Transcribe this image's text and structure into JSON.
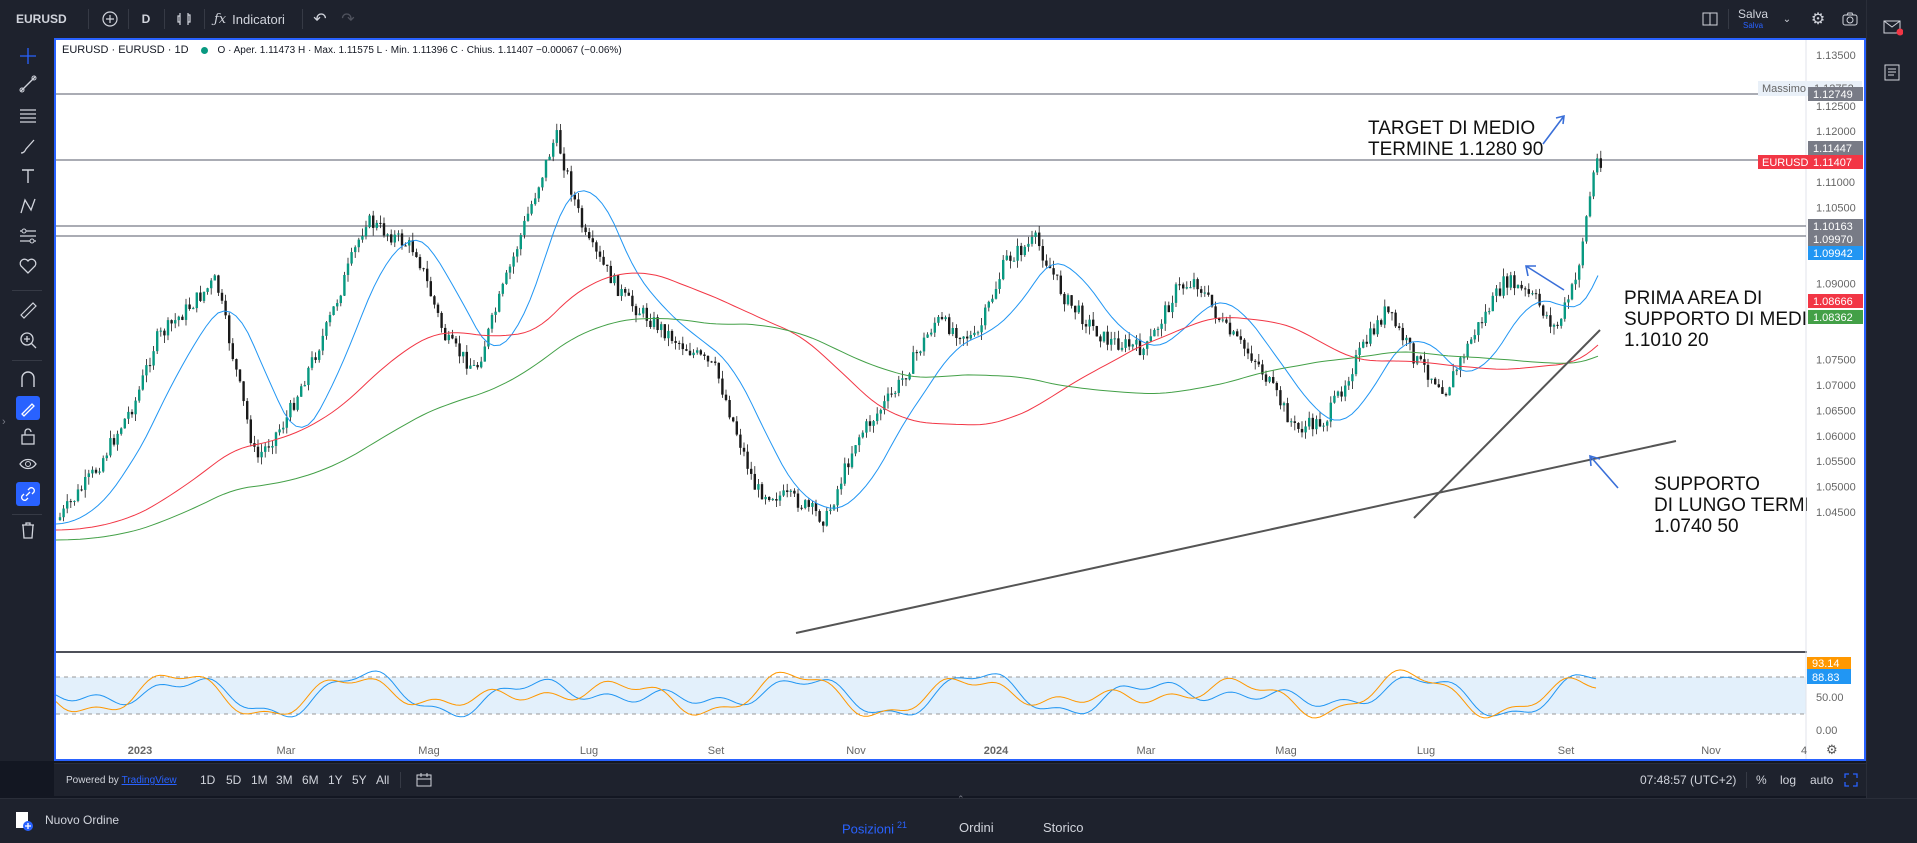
{
  "toolbar": {
    "symbol": "EURUSD",
    "interval": "D",
    "indicators_label": "Indicatori",
    "save_label": "Salva",
    "save_sub": "Salva"
  },
  "legend": {
    "title": "EURUSD · EURUSD · 1D",
    "ohlc": "O · Aper. 1.11473  H · Max. 1.11575  L · Min. 1.11396  C · Chius. 1.11407  −0.00067 (−0.06%)"
  },
  "price_axis": {
    "ticks": [
      "1.13500",
      "1.12500",
      "1.12000",
      "1.11000",
      "1.10500",
      "1.09000",
      "1.07500",
      "1.07000",
      "1.06500",
      "1.06000",
      "1.05500",
      "1.05000",
      "1.04500"
    ],
    "max_label": "Massimo",
    "max_value": "1.12752",
    "labels": [
      {
        "text": "1.12749",
        "color": "#787b86"
      },
      {
        "text": "1.11447",
        "color": "#787b86"
      },
      {
        "text": "1.11407",
        "color": "#f23645",
        "symbol": "EURUSD"
      },
      {
        "text": "1.10163",
        "color": "#787b86"
      },
      {
        "text": "1.09970",
        "color": "#787b86"
      },
      {
        "text": "1.09942",
        "color": "#2196f3"
      },
      {
        "text": "1.08666",
        "color": "#f23645"
      },
      {
        "text": "1.08362",
        "color": "#43a047"
      }
    ]
  },
  "oscillator": {
    "ticks": [
      "50.00",
      "0.00"
    ],
    "labels": [
      {
        "text": "93.14",
        "color": "#ff9800"
      },
      {
        "text": "88.83",
        "color": "#2196f3"
      }
    ]
  },
  "time_axis": [
    "2023",
    "Mar",
    "Mag",
    "Lug",
    "Set",
    "Nov",
    "2024",
    "Mar",
    "Mag",
    "Lug",
    "Set",
    "Nov",
    "4"
  ],
  "annotations": {
    "target": [
      "TARGET DI MEDIO",
      "TERMINE 1.1280 90"
    ],
    "prima": [
      "PRIMA AREA DI",
      "SUPPORTO DI MEDIO",
      "1.1010 20"
    ],
    "supporto": [
      "SUPPORTO",
      "DI LUNGO TERMIN",
      "1.0740 50"
    ]
  },
  "bottom_bar": {
    "powered": "Powered by",
    "brand": "TradingView",
    "ranges": [
      "1D",
      "5D",
      "1M",
      "3M",
      "6M",
      "1Y",
      "5Y",
      "All"
    ],
    "clock": "07:48:57 (UTC+2)",
    "pct": "%",
    "log": "log",
    "auto": "auto"
  },
  "order_bar": {
    "new_order": "Nuovo Ordine",
    "tabs": [
      {
        "label": "Posizioni",
        "badge": "21"
      },
      {
        "label": "Ordini"
      },
      {
        "label": "Storico"
      }
    ]
  },
  "colors": {
    "accent": "#2962ff",
    "down": "#f23645",
    "up": "#089981",
    "ma_blue": "#2196f3",
    "ma_red": "#f23645",
    "ma_green": "#43a047"
  }
}
